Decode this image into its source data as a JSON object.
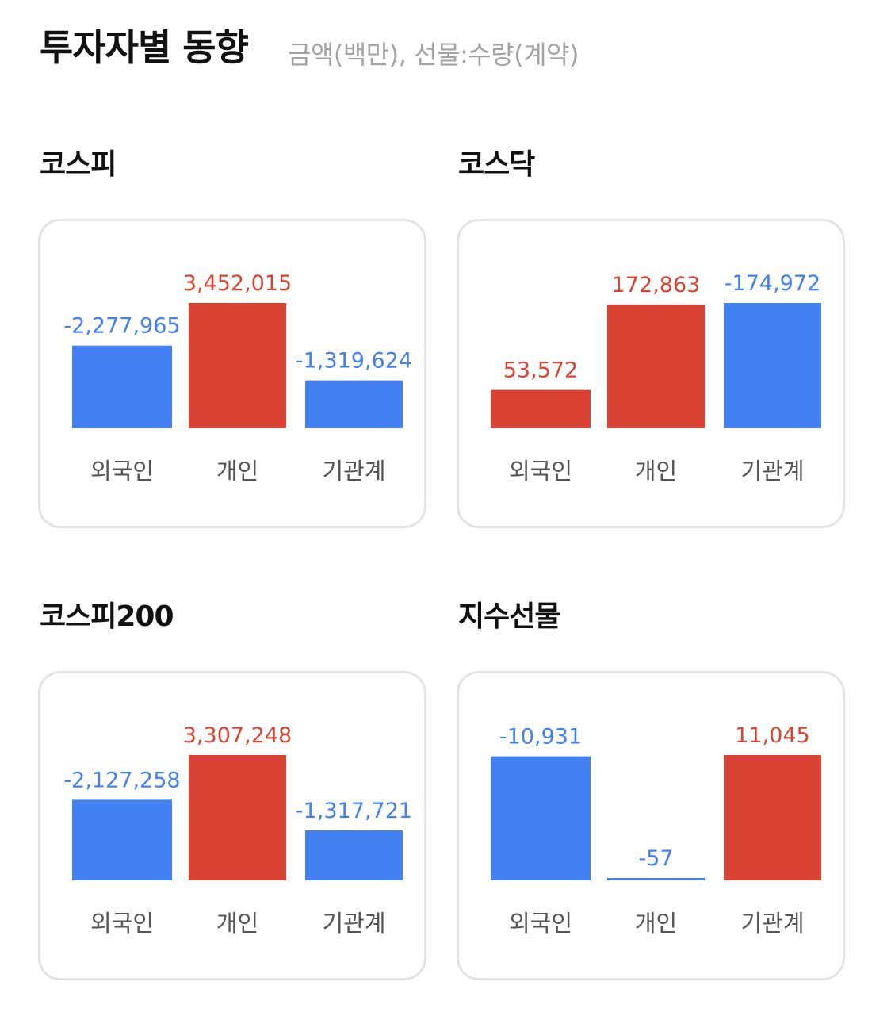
{
  "header": {
    "title": "투자자별 동향",
    "subtitle": "금액(백만), 선물:수량(계약)"
  },
  "colors": {
    "positive": "#da4333",
    "negative": "#4380f1",
    "label": "#555555",
    "border": "#e3e3e3"
  },
  "chart_data": [
    {
      "title": "코스피",
      "type": "bar",
      "categories": [
        "외국인",
        "개인",
        "기관계"
      ],
      "values": [
        -2277965,
        3452015,
        -1319624
      ],
      "value_labels": [
        "-2,277,965",
        "3,452,015",
        "-1,319,624"
      ]
    },
    {
      "title": "코스닥",
      "type": "bar",
      "categories": [
        "외국인",
        "개인",
        "기관계"
      ],
      "values": [
        53572,
        172863,
        -174972
      ],
      "value_labels": [
        "53,572",
        "172,863",
        "-174,972"
      ]
    },
    {
      "title": "코스피200",
      "type": "bar",
      "categories": [
        "외국인",
        "개인",
        "기관계"
      ],
      "values": [
        -2127258,
        3307248,
        -1317721
      ],
      "value_labels": [
        "-2,127,258",
        "3,307,248",
        "-1,317,721"
      ]
    },
    {
      "title": "지수선물",
      "type": "bar",
      "categories": [
        "외국인",
        "개인",
        "기관계"
      ],
      "values": [
        -10931,
        -57,
        11045
      ],
      "value_labels": [
        "-10,931",
        "-57",
        "11,045"
      ]
    }
  ]
}
